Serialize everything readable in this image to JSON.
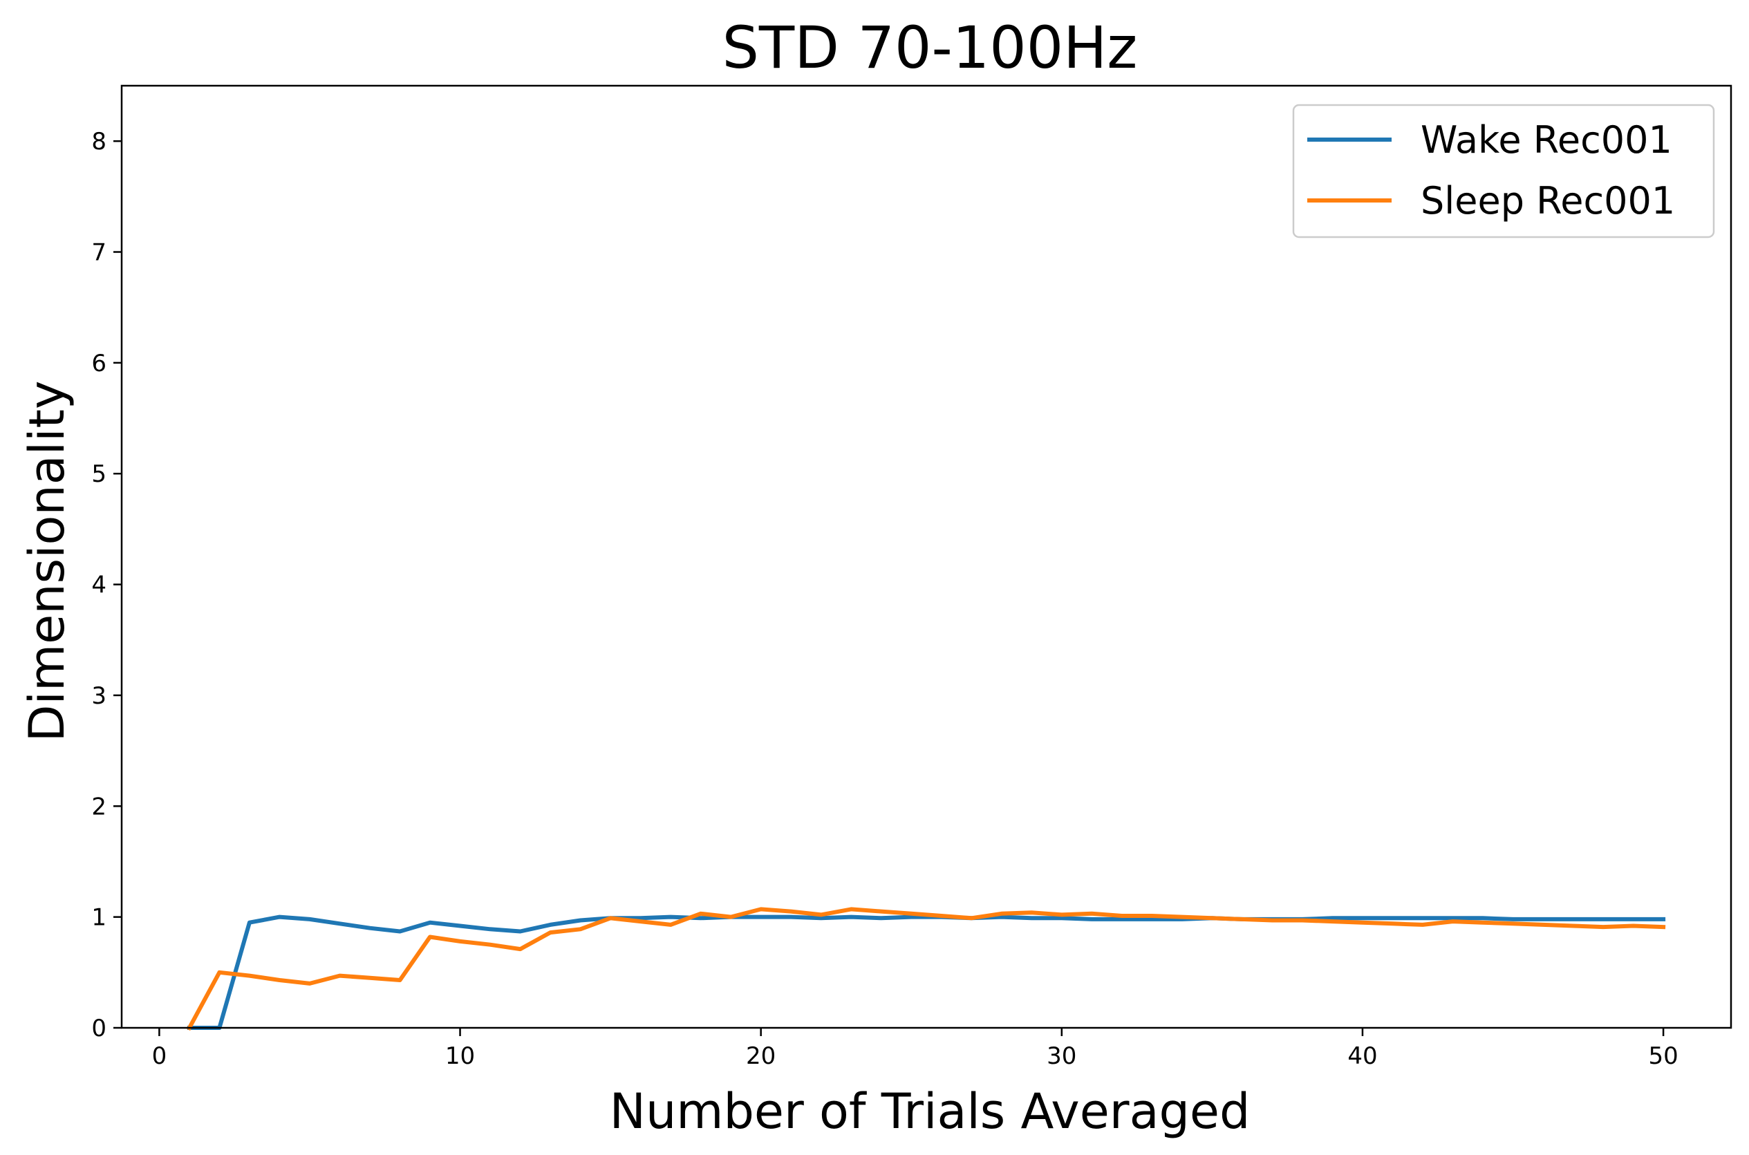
{
  "chart_data": {
    "type": "line",
    "title": "STD 70-100Hz",
    "xlabel": "Number of Trials Averaged",
    "ylabel": "Dimensionality",
    "xlim": [
      -1.25,
      52.25
    ],
    "ylim": [
      0,
      8.5
    ],
    "xticks": [
      0,
      10,
      20,
      30,
      40,
      50
    ],
    "yticks": [
      0,
      1,
      2,
      3,
      4,
      5,
      6,
      7,
      8
    ],
    "grid": false,
    "legend_position": "top-right",
    "x": [
      1,
      2,
      3,
      4,
      5,
      6,
      7,
      8,
      9,
      10,
      11,
      12,
      13,
      14,
      15,
      16,
      17,
      18,
      19,
      20,
      21,
      22,
      23,
      24,
      25,
      26,
      27,
      28,
      29,
      30,
      31,
      32,
      33,
      34,
      35,
      36,
      37,
      38,
      39,
      40,
      41,
      42,
      43,
      44,
      45,
      46,
      47,
      48,
      49,
      50
    ],
    "series": [
      {
        "name": "Wake Rec001",
        "color": "#1f77b4",
        "values": [
          0.0,
          0.0,
          0.95,
          1.0,
          0.98,
          0.94,
          0.9,
          0.87,
          0.95,
          0.92,
          0.89,
          0.87,
          0.93,
          0.97,
          0.99,
          0.99,
          1.0,
          0.99,
          1.0,
          1.0,
          1.0,
          0.99,
          1.0,
          0.99,
          1.0,
          1.0,
          0.99,
          1.0,
          0.99,
          0.99,
          0.98,
          0.98,
          0.98,
          0.98,
          0.99,
          0.98,
          0.98,
          0.98,
          0.99,
          0.99,
          0.99,
          0.99,
          0.99,
          0.99,
          0.98,
          0.98,
          0.98,
          0.98,
          0.98,
          0.98
        ]
      },
      {
        "name": "Sleep Rec001",
        "color": "#ff7f0e",
        "values": [
          0.0,
          0.5,
          0.47,
          0.43,
          0.4,
          0.47,
          0.45,
          0.43,
          0.82,
          0.78,
          0.75,
          0.71,
          0.86,
          0.89,
          0.99,
          0.96,
          0.93,
          1.03,
          1.0,
          1.07,
          1.05,
          1.02,
          1.07,
          1.05,
          1.03,
          1.01,
          0.99,
          1.03,
          1.04,
          1.02,
          1.03,
          1.01,
          1.01,
          1.0,
          0.99,
          0.98,
          0.97,
          0.97,
          0.96,
          0.95,
          0.94,
          0.93,
          0.96,
          0.95,
          0.94,
          0.93,
          0.92,
          0.91,
          0.92,
          0.91
        ]
      }
    ]
  }
}
